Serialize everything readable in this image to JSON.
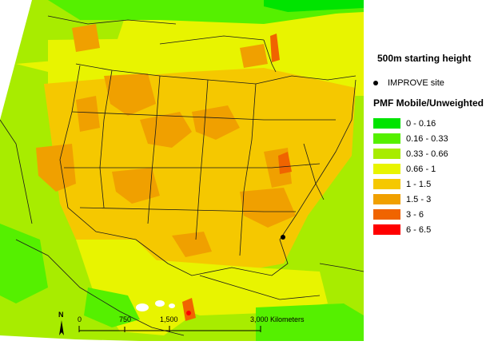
{
  "heading": "500m starting height",
  "site_label": "IMPROVE site",
  "legend_title": "PMF Mobile/Unweighted",
  "legend_items": [
    {
      "label": "0 - 0.16",
      "color": "#00e400"
    },
    {
      "label": "0.16 - 0.33",
      "color": "#55f000"
    },
    {
      "label": "0.33 - 0.66",
      "color": "#a8ec00"
    },
    {
      "label": "0.66 - 1",
      "color": "#e8f400"
    },
    {
      "label": "1 - 1.5",
      "color": "#f5c800"
    },
    {
      "label": "1.5 - 3",
      "color": "#f0a000"
    },
    {
      "label": "3 - 6",
      "color": "#f06400"
    },
    {
      "label": "6 - 6.5",
      "color": "#ff0000"
    }
  ],
  "north_label": "N",
  "scale_labels": [
    "0",
    "750",
    "1,500",
    "3,000 Kilometers"
  ]
}
